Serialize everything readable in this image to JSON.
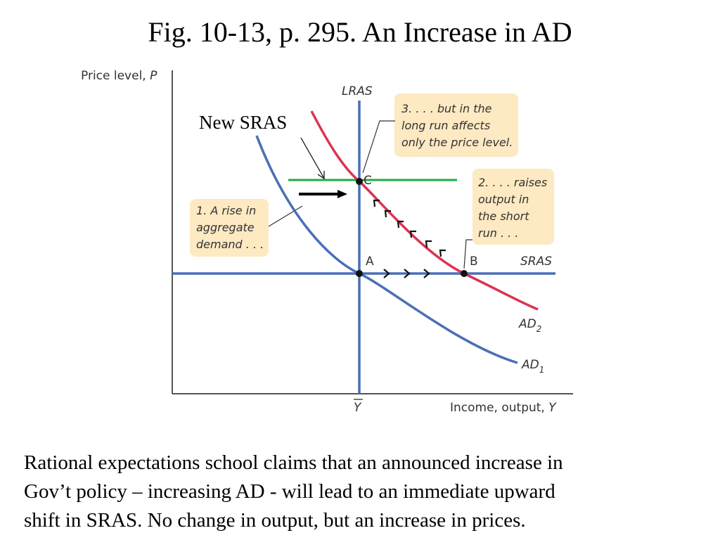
{
  "slide": {
    "title": "Fig. 10-13, p. 295. An Increase in AD",
    "caption_lines": [
      "Rational expectations school claims that an announced increase in",
      "Gov’t policy – increasing AD - will lead to an immediate upward",
      "shift in SRAS. No change in output, but an increase in prices."
    ]
  },
  "diagram": {
    "y_axis_label": "Price level, ",
    "y_axis_var": "P",
    "x_axis_label": "Income, output, ",
    "x_axis_var": "Y",
    "x_tick_label": "Y",
    "lras_label": "LRAS",
    "sras_label": "SRAS",
    "new_sras_label": "New SRAS",
    "ad1_label": "AD",
    "ad1_sub": "1",
    "ad2_label": "AD",
    "ad2_sub": "2",
    "point_a": "A",
    "point_b": "B",
    "point_c": "C",
    "note1_lines": [
      "1. A rise in",
      "aggregate",
      "demand . . ."
    ],
    "note2_lines": [
      "2. . . . raises",
      "output in",
      "the short",
      "run . . ."
    ],
    "note3_lines": [
      "3. . . . but in the",
      "long run affects",
      "only the price level."
    ],
    "colors": {
      "axis": "#555555",
      "blue_curve": "#4a6fb5",
      "red_curve": "#dd3350",
      "new_sras": "#22aa44",
      "note_bg": "#fde9c2"
    }
  }
}
